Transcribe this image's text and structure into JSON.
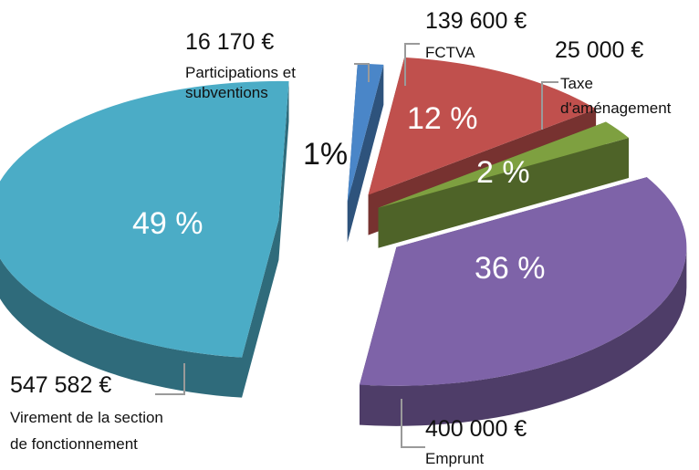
{
  "chart_data": {
    "type": "pie",
    "title": "",
    "slices": [
      {
        "key": "participations",
        "amount": "16 170 €",
        "label_lines": [
          "Participations et",
          "subventions"
        ],
        "percent_label": "1%",
        "value": 16170,
        "color": "#4a86c8"
      },
      {
        "key": "fctva",
        "amount": "139 600 €",
        "label_lines": [
          "FCTVA"
        ],
        "percent_label": "12 %",
        "value": 139600,
        "color": "#c0504d"
      },
      {
        "key": "taxe",
        "amount": "25 000 €",
        "label_lines": [
          "Taxe",
          "d'aménagement"
        ],
        "percent_label": "2 %",
        "value": 25000,
        "color": "#7ea040"
      },
      {
        "key": "emprunt",
        "amount": "400 000 €",
        "label_lines": [
          "Emprunt"
        ],
        "percent_label": "36 %",
        "value": 400000,
        "color": "#7e63a8"
      },
      {
        "key": "virement",
        "amount": "547 582 €",
        "label_lines": [
          "Virement de la section",
          "de fonctionnement"
        ],
        "percent_label": "49 %",
        "value": 547582,
        "color": "#4bacc6"
      }
    ]
  }
}
